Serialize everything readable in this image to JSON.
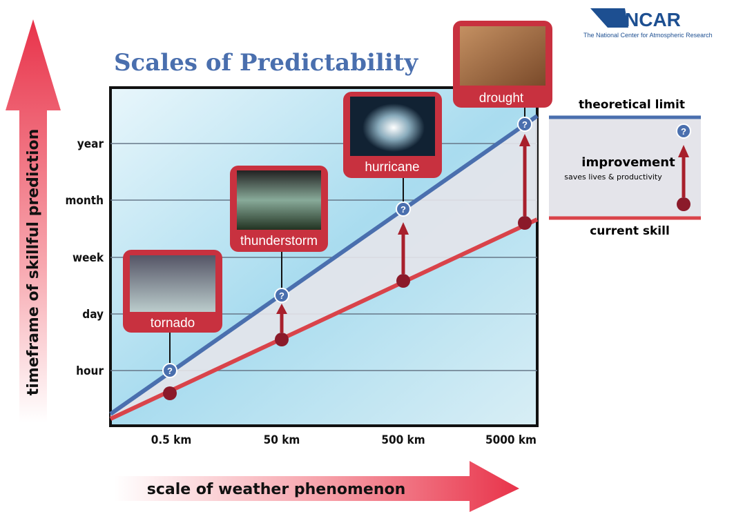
{
  "title": "Scales of Predictability",
  "logo": {
    "name": "NCAR",
    "subtitle": "The National Center for Atmospheric Research"
  },
  "y_axis": {
    "label": "timeframe of skillful prediction",
    "levels": [
      "year",
      "month",
      "week",
      "day",
      "hour"
    ]
  },
  "x_axis": {
    "label": "scale of weather phenomenon",
    "levels": [
      "0.5 km",
      "50 km",
      "500 km",
      "5000 km"
    ]
  },
  "events": [
    {
      "label": "tornado"
    },
    {
      "label": "thunderstorm"
    },
    {
      "label": "hurricane"
    },
    {
      "label": "drought"
    }
  ],
  "marker_symbol": "?",
  "legend": {
    "top": "theoretical limit",
    "middle": "improvement",
    "middle_note": "saves lives & productivity",
    "bottom": "current skill"
  }
}
